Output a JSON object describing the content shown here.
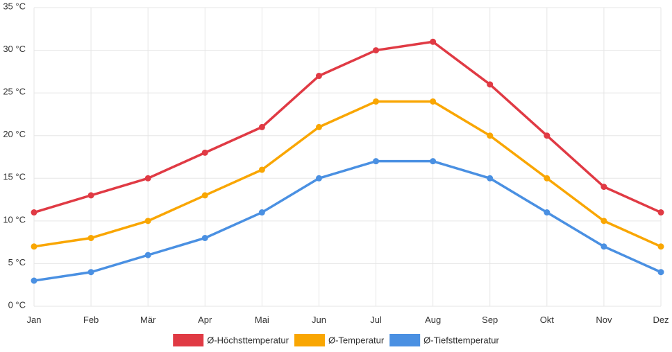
{
  "chart_data": {
    "type": "line",
    "categories": [
      "Jan",
      "Feb",
      "Mär",
      "Apr",
      "Mai",
      "Jun",
      "Jul",
      "Aug",
      "Sep",
      "Okt",
      "Nov",
      "Dez"
    ],
    "y_tick_labels": [
      "0 °C",
      "5 °C",
      "10 °C",
      "15 °C",
      "20 °C",
      "25 °C",
      "30 °C",
      "35 °C"
    ],
    "ylim": [
      0,
      35
    ],
    "y_step": 5,
    "grid": true,
    "legend_position": "bottom",
    "series": [
      {
        "name": "Ø-Höchsttemperatur",
        "color": "#e03a44",
        "values": [
          11,
          13,
          15,
          18,
          21,
          27,
          30,
          31,
          26,
          20,
          14,
          11
        ]
      },
      {
        "name": "Ø-Temperatur",
        "color": "#f9a602",
        "values": [
          7,
          8,
          10,
          13,
          16,
          21,
          24,
          24,
          20,
          15,
          10,
          7
        ]
      },
      {
        "name": "Ø-Tiefsttemperatur",
        "color": "#4a90e2",
        "values": [
          3,
          4,
          6,
          8,
          11,
          15,
          17,
          17,
          15,
          11,
          7,
          4
        ]
      }
    ]
  }
}
